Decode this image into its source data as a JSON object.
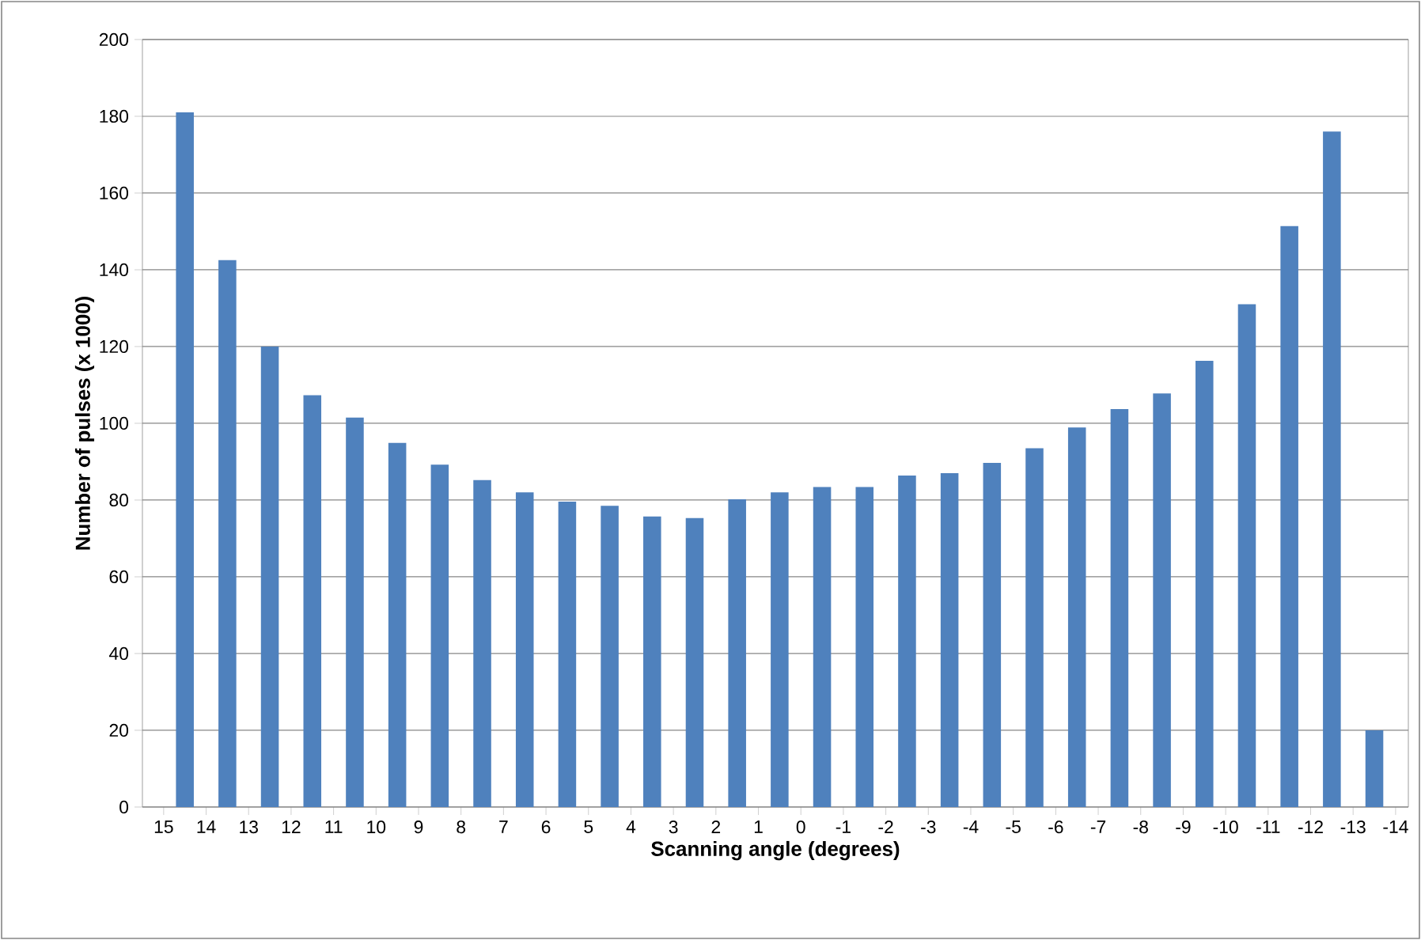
{
  "chart_data": {
    "type": "histogram",
    "xlabel": "Scanning angle (degrees)",
    "ylabel": "Number of pulses (x 1000)",
    "bins": [
      15,
      14,
      13,
      12,
      11,
      10,
      9,
      8,
      7,
      6,
      5,
      4,
      3,
      2,
      1,
      0,
      -1,
      -2,
      -3,
      -4,
      -5,
      -6,
      -7,
      -8,
      -9,
      -10,
      -11,
      -12,
      -13,
      -14
    ],
    "values": [
      181,
      142.5,
      120,
      107.3,
      101.5,
      94.9,
      89.2,
      85.2,
      82,
      79.6,
      78.5,
      75.7,
      75.3,
      80.2,
      82,
      83.4,
      83.4,
      86.4,
      87,
      89.7,
      93.5,
      98.9,
      103.7,
      107.8,
      116.3,
      131,
      151.4,
      176,
      20
    ],
    "color": "#4f81bd",
    "xlim": [
      15.5,
      -14.3
    ],
    "xticks": [
      15,
      14,
      13,
      12,
      11,
      10,
      9,
      8,
      7,
      6,
      5,
      4,
      3,
      2,
      1,
      0,
      -1,
      -2,
      -3,
      -4,
      -5,
      -6,
      -7,
      -8,
      -9,
      -10,
      -11,
      -12,
      -13,
      -14
    ],
    "ylim": [
      0,
      200
    ],
    "yticks": [
      0,
      20,
      40,
      60,
      80,
      100,
      120,
      140,
      160,
      180,
      200
    ],
    "grid": "y"
  }
}
